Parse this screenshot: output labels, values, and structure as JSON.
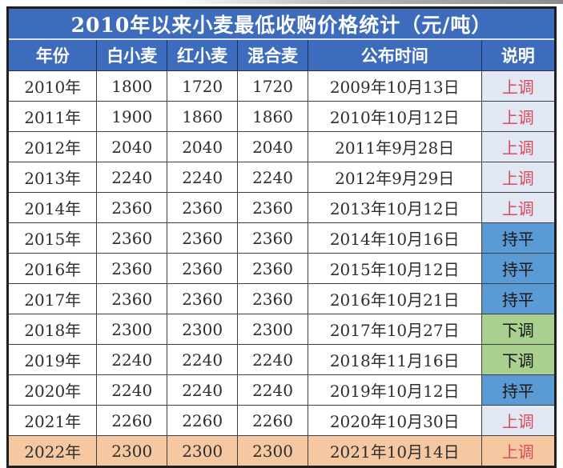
{
  "title": "2010年以来小麦最低收购价格统计（元/吨）",
  "columns": [
    "年份",
    "白小麦",
    "红小麦",
    "混合麦",
    "公布时间",
    "说明"
  ],
  "rows": [
    {
      "year": "2010年",
      "white": "1800",
      "red": "1720",
      "mixed": "1720",
      "date": "2009年10月13日",
      "status": "上调",
      "status_type": "up",
      "highlight": false
    },
    {
      "year": "2011年",
      "white": "1900",
      "red": "1860",
      "mixed": "1860",
      "date": "2010年10月12日",
      "status": "上调",
      "status_type": "up",
      "highlight": false
    },
    {
      "year": "2012年",
      "white": "2040",
      "red": "2040",
      "mixed": "2040",
      "date": "2011年9月28日",
      "status": "上调",
      "status_type": "up",
      "highlight": false
    },
    {
      "year": "2013年",
      "white": "2240",
      "red": "2240",
      "mixed": "2240",
      "date": "2012年9月29日",
      "status": "上调",
      "status_type": "up",
      "highlight": false
    },
    {
      "year": "2014年",
      "white": "2360",
      "red": "2360",
      "mixed": "2360",
      "date": "2013年10月12日",
      "status": "上调",
      "status_type": "up",
      "highlight": false
    },
    {
      "year": "2015年",
      "white": "2360",
      "red": "2360",
      "mixed": "2360",
      "date": "2014年10月16日",
      "status": "持平",
      "status_type": "flat",
      "highlight": false
    },
    {
      "year": "2016年",
      "white": "2360",
      "red": "2360",
      "mixed": "2360",
      "date": "2015年10月12日",
      "status": "持平",
      "status_type": "flat",
      "highlight": false
    },
    {
      "year": "2017年",
      "white": "2360",
      "red": "2360",
      "mixed": "2360",
      "date": "2016年10月21日",
      "status": "持平",
      "status_type": "flat",
      "highlight": false
    },
    {
      "year": "2018年",
      "white": "2300",
      "red": "2300",
      "mixed": "2300",
      "date": "2017年10月27日",
      "status": "下调",
      "status_type": "down",
      "highlight": false
    },
    {
      "year": "2019年",
      "white": "2240",
      "red": "2240",
      "mixed": "2240",
      "date": "2018年11月16日",
      "status": "下调",
      "status_type": "down",
      "highlight": false
    },
    {
      "year": "2020年",
      "white": "2240",
      "red": "2240",
      "mixed": "2240",
      "date": "2019年10月12日",
      "status": "持平",
      "status_type": "flat",
      "highlight": false
    },
    {
      "year": "2021年",
      "white": "2260",
      "red": "2260",
      "mixed": "2260",
      "date": "2020年10月30日",
      "status": "上调",
      "status_type": "up",
      "highlight": false
    },
    {
      "year": "2022年",
      "white": "2300",
      "red": "2300",
      "mixed": "2300",
      "date": "2021年10月14日",
      "status": "上调",
      "status_type": "up",
      "highlight": true
    }
  ],
  "colors": {
    "header_blue": "#3e6cbc",
    "flat_blue": "#5b9bd5",
    "down_green": "#a9d08e",
    "up_bg": "#e2e8f3",
    "up_red": "#dc4a5a",
    "highlight_peach": "#f6c8a2",
    "border_dark": "#1f1f1f"
  },
  "chart_data": {
    "type": "table",
    "title": "2010年以来小麦最低收购价格统计（元/吨）",
    "columns": [
      "年份",
      "白小麦",
      "红小麦",
      "混合麦",
      "公布时间",
      "说明"
    ],
    "rows": [
      [
        "2010年",
        1800,
        1720,
        1720,
        "2009年10月13日",
        "上调"
      ],
      [
        "2011年",
        1900,
        1860,
        1860,
        "2010年10月12日",
        "上调"
      ],
      [
        "2012年",
        2040,
        2040,
        2040,
        "2011年9月28日",
        "上调"
      ],
      [
        "2013年",
        2240,
        2240,
        2240,
        "2012年9月29日",
        "上调"
      ],
      [
        "2014年",
        2360,
        2360,
        2360,
        "2013年10月12日",
        "上调"
      ],
      [
        "2015年",
        2360,
        2360,
        2360,
        "2014年10月16日",
        "持平"
      ],
      [
        "2016年",
        2360,
        2360,
        2360,
        "2015年10月12日",
        "持平"
      ],
      [
        "2017年",
        2360,
        2360,
        2360,
        "2016年10月21日",
        "持平"
      ],
      [
        "2018年",
        2300,
        2300,
        2300,
        "2017年10月27日",
        "下调"
      ],
      [
        "2019年",
        2240,
        2240,
        2240,
        "2018年11月16日",
        "下调"
      ],
      [
        "2020年",
        2240,
        2240,
        2240,
        "2019年10月12日",
        "持平"
      ],
      [
        "2021年",
        2260,
        2260,
        2260,
        "2020年10月30日",
        "上调"
      ],
      [
        "2022年",
        2300,
        2300,
        2300,
        "2021年10月14日",
        "上调"
      ]
    ],
    "legend": {
      "上调": "price raised (red text, light-blue cell)",
      "持平": "unchanged (blue cell)",
      "下调": "price lowered (green cell)"
    },
    "units": "元/吨",
    "highlighted_row": "2022年"
  }
}
